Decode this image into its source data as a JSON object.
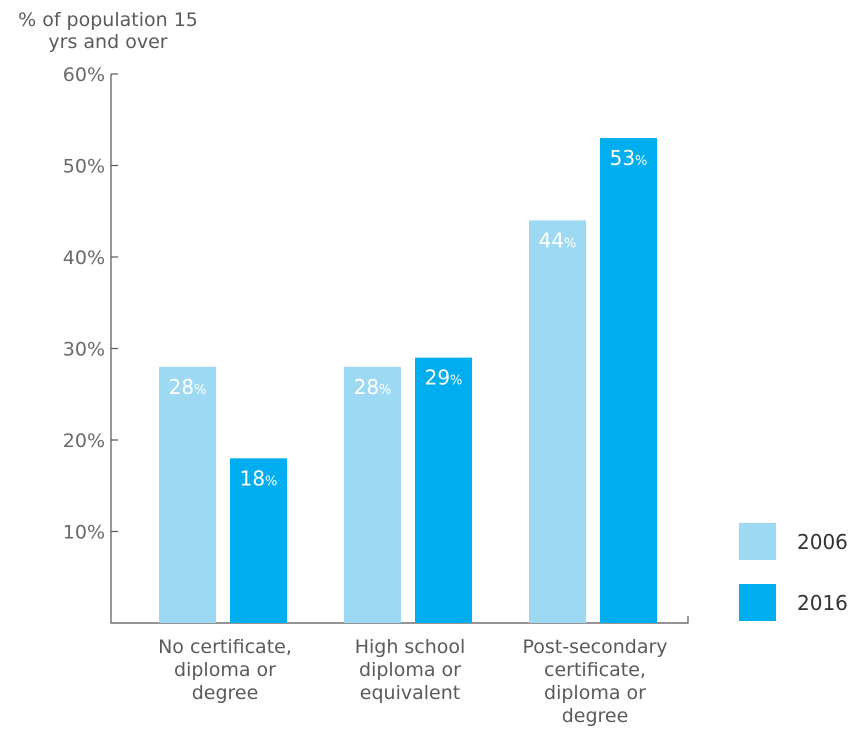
{
  "chart_data": {
    "type": "bar",
    "title": "",
    "ylabel": "% of population 15 yrs and over",
    "ylabel_lines": [
      "% of population 15",
      "yrs and over"
    ],
    "xlabel": "",
    "ylim": [
      0,
      60
    ],
    "yticks": [
      10,
      20,
      30,
      40,
      50,
      60
    ],
    "ytick_labels": [
      "10%",
      "20%",
      "30%",
      "40%",
      "50%",
      "60%"
    ],
    "categories": [
      "No certificate, diploma or degree",
      "High school diploma or equivalent",
      "Post-secondary certificate, diploma or degree"
    ],
    "category_lines": [
      [
        "No certificate,",
        "diploma or",
        "degree"
      ],
      [
        "High school",
        "diploma or",
        "equivalent"
      ],
      [
        "Post-secondary",
        "certificate,",
        "diploma or",
        "degree"
      ]
    ],
    "series": [
      {
        "name": "2006",
        "color": "#9ed9f3",
        "values": [
          28,
          28,
          44
        ],
        "labels": [
          "28",
          "28",
          "44"
        ]
      },
      {
        "name": "2016",
        "color": "#00aeef",
        "values": [
          18,
          29,
          53
        ],
        "labels": [
          "18",
          "29",
          "53"
        ]
      }
    ],
    "value_suffix": "%",
    "grid": false,
    "legend_position": "right"
  }
}
